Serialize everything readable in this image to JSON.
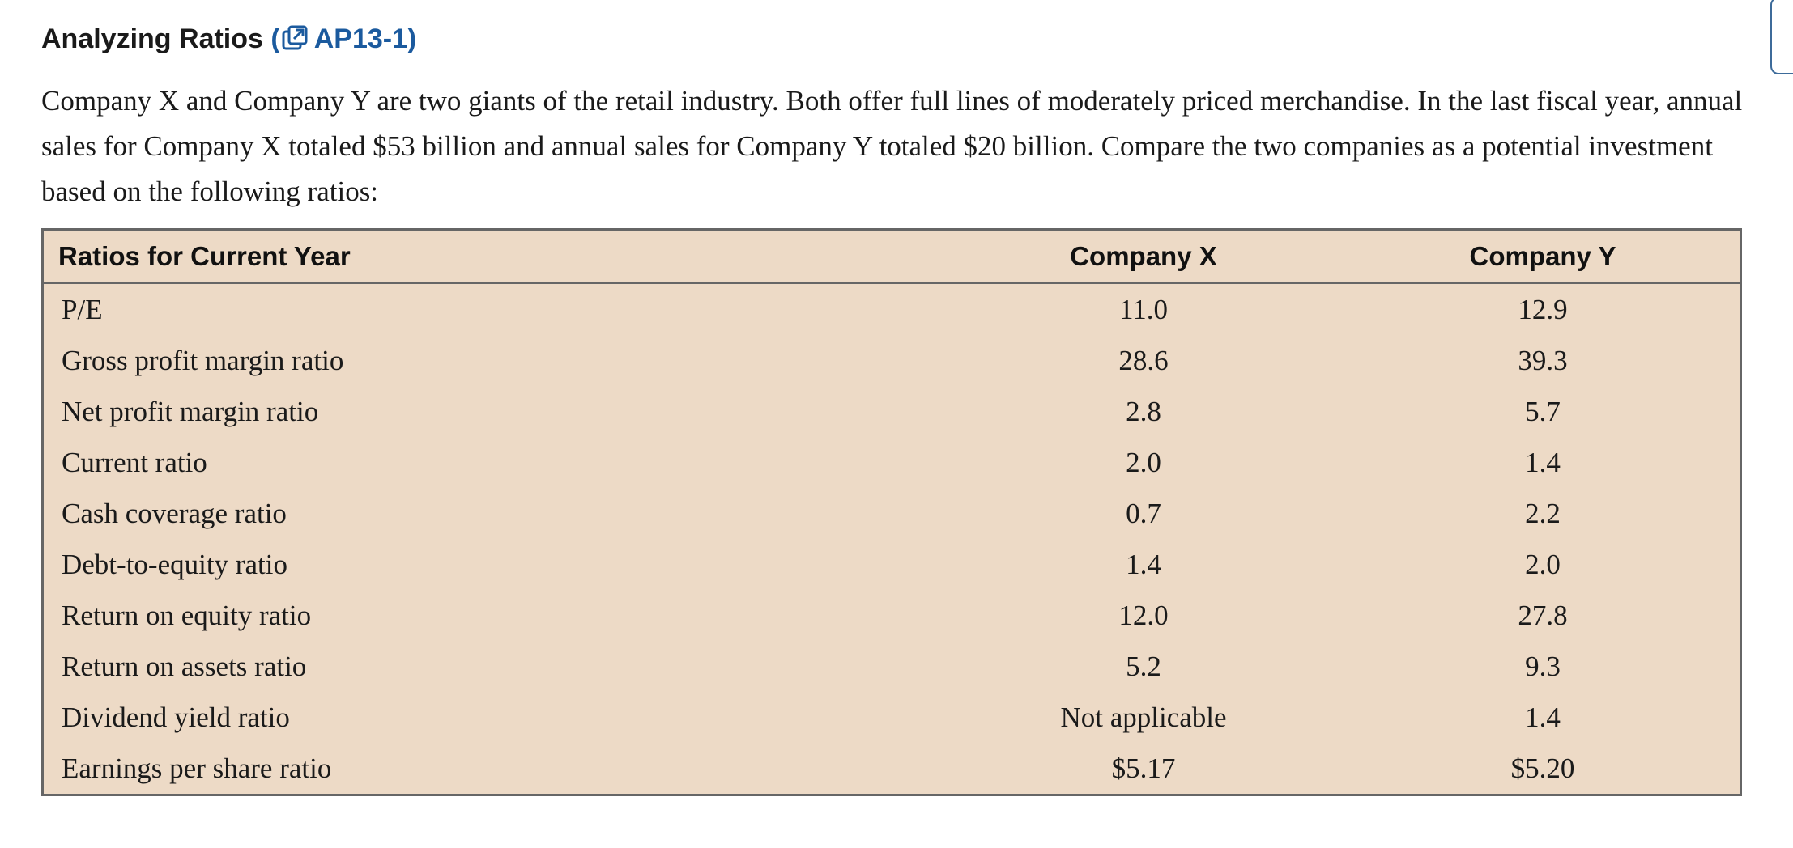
{
  "header": {
    "title": "Analyzing Ratios",
    "ref_open": "(",
    "ref_label": "AP13-1)",
    "ref_icon": "external-link-icon",
    "accent_color": "#1b5a9e"
  },
  "intro_text": "Company X and Company Y are two giants of the retail industry. Both offer full lines of moderately priced merchandise. In the last fiscal year, annual sales for Company X totaled $53 billion and annual sales for Company Y totaled $20 billion. Compare the two companies as a potential investment based on the following ratios:",
  "table": {
    "headers": [
      "Ratios for Current Year",
      "Company X",
      "Company Y"
    ],
    "rows": [
      {
        "label": "P/E",
        "company_x": "11.0",
        "company_y": "12.9"
      },
      {
        "label": "Gross profit margin ratio",
        "company_x": "28.6",
        "company_y": "39.3"
      },
      {
        "label": "Net profit margin ratio",
        "company_x": "2.8",
        "company_y": "5.7"
      },
      {
        "label": "Current ratio",
        "company_x": "2.0",
        "company_y": "1.4"
      },
      {
        "label": "Cash coverage ratio",
        "company_x": "0.7",
        "company_y": "2.2"
      },
      {
        "label": "Debt-to-equity ratio",
        "company_x": "1.4",
        "company_y": "2.0"
      },
      {
        "label": "Return on equity ratio",
        "company_x": "12.0",
        "company_y": "27.8"
      },
      {
        "label": "Return on assets ratio",
        "company_x": "5.2",
        "company_y": "9.3"
      },
      {
        "label": "Dividend yield ratio",
        "company_x": "Not applicable",
        "company_y": "1.4"
      },
      {
        "label": "Earnings per share ratio",
        "company_x": "$5.17",
        "company_y": "$5.20"
      }
    ],
    "background_color": "#eddac6",
    "border_color": "#666666"
  }
}
